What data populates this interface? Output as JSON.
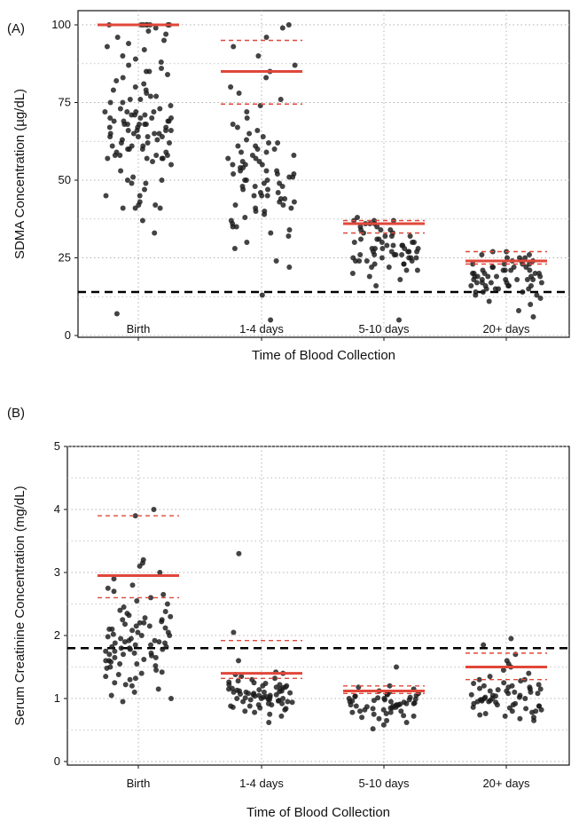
{
  "colors": {
    "point": "#1a1a1a",
    "summary": "#e0473a",
    "threshold": "#000000",
    "grid": "#b3b3b3"
  },
  "chart_data": [
    {
      "type": "scatter",
      "panel_label": "(A)",
      "xlabel": "Time of Blood Collection",
      "ylabel": "SDMA Concentration (µg/dL)",
      "categories": [
        "Birth",
        "1-4 days",
        "5-10 days",
        "20+ days"
      ],
      "ylim": [
        0,
        100
      ],
      "yticks": [
        0,
        25,
        50,
        75,
        100
      ],
      "grid": true,
      "reference_line": 14,
      "median": [
        100,
        85,
        36,
        24
      ],
      "iqr_upper": [
        100,
        95,
        37,
        27
      ],
      "iqr_lower": [
        100,
        74.5,
        33,
        23
      ],
      "points": [
        [
          7,
          33,
          37,
          41,
          41,
          41,
          42,
          42,
          43,
          45,
          45,
          47,
          49,
          49,
          50,
          50,
          51,
          53,
          55,
          56,
          57,
          57,
          57,
          57,
          58,
          58,
          58,
          58,
          59,
          59,
          60,
          60,
          60,
          61,
          61,
          61,
          62,
          62,
          62,
          63,
          63,
          64,
          64,
          64,
          64,
          65,
          65,
          65,
          65,
          66,
          66,
          66,
          66,
          67,
          67,
          67,
          68,
          68,
          68,
          68,
          68,
          69,
          69,
          69,
          69,
          70,
          70,
          70,
          70,
          71,
          71,
          71,
          72,
          72,
          72,
          72,
          73,
          73,
          74,
          75,
          75,
          76,
          76,
          77,
          77,
          78,
          79,
          79,
          80,
          81,
          82,
          83,
          84,
          85,
          85,
          86,
          87,
          88,
          89,
          90,
          92,
          93,
          94,
          95,
          96,
          97,
          98,
          99,
          100,
          100,
          100,
          100,
          100,
          100,
          100,
          100
        ],
        [
          5,
          13,
          22,
          24,
          28,
          30,
          32,
          33,
          34,
          35,
          35,
          36,
          37,
          38,
          39,
          40,
          40,
          41,
          41,
          42,
          42,
          43,
          43,
          44,
          44,
          45,
          45,
          45,
          46,
          46,
          47,
          47,
          48,
          48,
          48,
          49,
          49,
          50,
          50,
          50,
          51,
          51,
          52,
          52,
          52,
          53,
          53,
          53,
          54,
          54,
          55,
          55,
          55,
          56,
          56,
          57,
          57,
          58,
          58,
          59,
          59,
          60,
          60,
          61,
          61,
          62,
          62,
          63,
          64,
          65,
          66,
          67,
          68,
          70,
          72,
          74,
          76,
          78,
          80,
          83,
          85,
          87,
          90,
          93,
          96,
          99,
          100
        ],
        [
          5,
          16,
          18,
          19,
          20,
          21,
          21,
          22,
          22,
          23,
          23,
          23,
          24,
          24,
          24,
          24,
          25,
          25,
          25,
          25,
          25,
          26,
          26,
          26,
          26,
          26,
          27,
          27,
          27,
          27,
          27,
          28,
          28,
          28,
          28,
          28,
          29,
          29,
          29,
          29,
          30,
          30,
          30,
          30,
          31,
          31,
          31,
          32,
          32,
          32,
          33,
          33,
          34,
          34,
          34,
          35,
          35,
          36,
          36,
          36,
          37,
          37,
          37,
          38
        ],
        [
          6,
          8,
          10,
          11,
          12,
          13,
          13,
          14,
          14,
          14,
          15,
          15,
          15,
          15,
          16,
          16,
          16,
          16,
          16,
          17,
          17,
          17,
          17,
          17,
          18,
          18,
          18,
          18,
          18,
          18,
          19,
          19,
          19,
          19,
          19,
          19,
          20,
          20,
          20,
          20,
          20,
          21,
          21,
          21,
          21,
          21,
          22,
          22,
          22,
          22,
          23,
          23,
          23,
          23,
          24,
          24,
          24,
          25,
          25,
          25,
          26,
          26,
          27,
          27
        ]
      ]
    },
    {
      "type": "scatter",
      "panel_label": "(B)",
      "xlabel": "Time of Blood Collection",
      "ylabel": "Serum Creatinine Concentration (mg/dL)",
      "categories": [
        "Birth",
        "1-4 days",
        "5-10 days",
        "20+ days"
      ],
      "ylim": [
        0,
        5
      ],
      "yticks": [
        0,
        1,
        2,
        3,
        4,
        5
      ],
      "grid": true,
      "reference_line": 1.8,
      "median": [
        2.95,
        1.4,
        1.12,
        1.5
      ],
      "iqr_upper": [
        3.9,
        1.92,
        1.2,
        1.72
      ],
      "iqr_lower": [
        2.6,
        1.32,
        1.08,
        1.3
      ],
      "points": [
        [
          0.95,
          1.0,
          1.05,
          1.1,
          1.15,
          1.2,
          1.22,
          1.25,
          1.3,
          1.32,
          1.35,
          1.38,
          1.4,
          1.42,
          1.45,
          1.48,
          1.5,
          1.52,
          1.55,
          1.55,
          1.58,
          1.6,
          1.6,
          1.62,
          1.65,
          1.65,
          1.68,
          1.7,
          1.7,
          1.72,
          1.72,
          1.75,
          1.75,
          1.78,
          1.78,
          1.8,
          1.8,
          1.82,
          1.82,
          1.85,
          1.85,
          1.88,
          1.88,
          1.9,
          1.9,
          1.92,
          1.92,
          1.95,
          1.95,
          1.98,
          2.0,
          2.0,
          2.02,
          2.05,
          2.05,
          2.08,
          2.1,
          2.1,
          2.12,
          2.15,
          2.15,
          2.18,
          2.2,
          2.2,
          2.22,
          2.25,
          2.25,
          2.28,
          2.3,
          2.32,
          2.35,
          2.38,
          2.4,
          2.45,
          2.5,
          2.55,
          2.6,
          2.65,
          2.7,
          2.75,
          2.8,
          2.9,
          3.0,
          3.1,
          3.15,
          3.2,
          3.9,
          4.0
        ],
        [
          0.62,
          0.72,
          0.75,
          0.78,
          0.8,
          0.82,
          0.84,
          0.85,
          0.86,
          0.88,
          0.88,
          0.9,
          0.9,
          0.92,
          0.92,
          0.94,
          0.95,
          0.95,
          0.96,
          0.97,
          0.98,
          0.98,
          0.99,
          1.0,
          1.0,
          1.0,
          1.01,
          1.02,
          1.02,
          1.03,
          1.04,
          1.05,
          1.05,
          1.06,
          1.06,
          1.07,
          1.08,
          1.08,
          1.09,
          1.1,
          1.1,
          1.1,
          1.11,
          1.12,
          1.12,
          1.13,
          1.14,
          1.15,
          1.15,
          1.16,
          1.17,
          1.18,
          1.18,
          1.2,
          1.2,
          1.22,
          1.22,
          1.24,
          1.25,
          1.26,
          1.28,
          1.3,
          1.32,
          1.35,
          1.38,
          1.4,
          1.42,
          1.6,
          2.05,
          3.3
        ],
        [
          0.52,
          0.58,
          0.62,
          0.65,
          0.68,
          0.7,
          0.72,
          0.73,
          0.75,
          0.76,
          0.78,
          0.78,
          0.8,
          0.8,
          0.82,
          0.82,
          0.84,
          0.85,
          0.85,
          0.86,
          0.87,
          0.88,
          0.88,
          0.89,
          0.9,
          0.9,
          0.9,
          0.91,
          0.92,
          0.92,
          0.93,
          0.94,
          0.95,
          0.95,
          0.96,
          0.97,
          0.98,
          0.98,
          0.99,
          1.0,
          1.0,
          1.01,
          1.02,
          1.03,
          1.04,
          1.05,
          1.06,
          1.07,
          1.08,
          1.1,
          1.12,
          1.15,
          1.18,
          1.2,
          1.5
        ],
        [
          0.65,
          0.68,
          0.7,
          0.72,
          0.74,
          0.76,
          0.78,
          0.8,
          0.8,
          0.82,
          0.84,
          0.85,
          0.86,
          0.88,
          0.88,
          0.9,
          0.9,
          0.92,
          0.92,
          0.94,
          0.95,
          0.95,
          0.96,
          0.97,
          0.98,
          0.98,
          1.0,
          1.0,
          1.0,
          1.02,
          1.02,
          1.04,
          1.05,
          1.05,
          1.06,
          1.08,
          1.08,
          1.1,
          1.1,
          1.12,
          1.12,
          1.14,
          1.15,
          1.15,
          1.16,
          1.18,
          1.18,
          1.2,
          1.2,
          1.22,
          1.24,
          1.25,
          1.28,
          1.3,
          1.3,
          1.35,
          1.4,
          1.45,
          1.5,
          1.55,
          1.6,
          1.7,
          1.85,
          1.95
        ]
      ]
    }
  ]
}
